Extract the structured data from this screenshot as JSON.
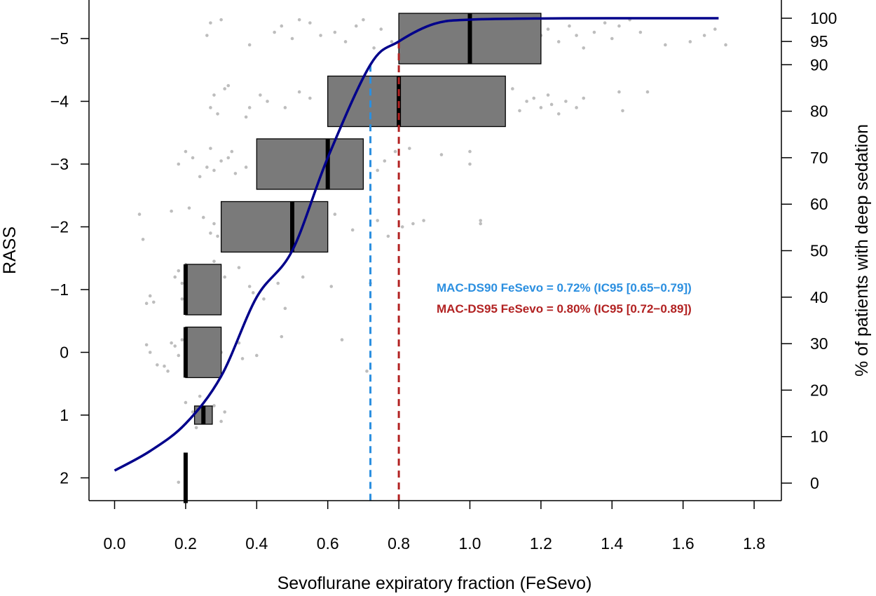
{
  "chart_data": {
    "type": "boxplot",
    "xlabel": "Sevoflurane expiratory fraction (FeSevo)",
    "ylabel": "RASS",
    "y2label": "% of patients with deep sedation",
    "xlim": [
      0,
      1.8
    ],
    "ylim_rass": [
      2,
      -5
    ],
    "ylim_percent": [
      0,
      100
    ],
    "x_ticks": [
      "0.0",
      "0.2",
      "0.4",
      "0.6",
      "0.8",
      "1.0",
      "1.2",
      "1.4",
      "1.6",
      "1.8"
    ],
    "x_tick_values": [
      0.0,
      0.2,
      0.4,
      0.6,
      0.8,
      1.0,
      1.2,
      1.4,
      1.6,
      1.8
    ],
    "y_ticks": [
      "−5",
      "−4",
      "−3",
      "−2",
      "−1",
      "0",
      "1",
      "2"
    ],
    "y_tick_values": [
      -5,
      -4,
      -3,
      -2,
      -1,
      0,
      1,
      2
    ],
    "y2_ticks": [
      "100",
      "95",
      "90",
      "80",
      "70",
      "60",
      "50",
      "40",
      "30",
      "20",
      "10",
      "0"
    ],
    "y2_tick_values": [
      100,
      95,
      90,
      80,
      70,
      60,
      50,
      40,
      30,
      20,
      10,
      0
    ],
    "boxes": [
      {
        "rass": -5,
        "q1": 0.8,
        "median": 1.0,
        "q3": 1.2
      },
      {
        "rass": -4,
        "q1": 0.6,
        "median": 0.8,
        "q3": 1.1
      },
      {
        "rass": -3,
        "q1": 0.4,
        "median": 0.6,
        "q3": 0.7
      },
      {
        "rass": -2,
        "q1": 0.3,
        "median": 0.5,
        "q3": 0.6
      },
      {
        "rass": -1,
        "q1": 0.2,
        "median": 0.2,
        "q3": 0.3
      },
      {
        "rass": 0,
        "q1": 0.2,
        "median": 0.2,
        "q3": 0.3
      },
      {
        "rass": 1,
        "q1": 0.225,
        "median": 0.25,
        "q3": 0.275
      },
      {
        "rass": 2,
        "q1": 0.2,
        "median": 0.2,
        "q3": 0.2
      }
    ],
    "curve": {
      "name": "% of patients with deep sedation",
      "x": [
        0.0,
        0.1,
        0.2,
        0.3,
        0.4,
        0.5,
        0.6,
        0.72,
        0.8,
        0.9,
        1.0,
        1.2,
        1.4,
        1.7
      ],
      "y": [
        2.7,
        6.9,
        12.8,
        23.0,
        40.0,
        50.0,
        70.0,
        90.0,
        95.0,
        98.8,
        99.7,
        99.95,
        100.0,
        100.0
      ]
    },
    "reference_lines": [
      {
        "label": "MAC-DS90",
        "x": 0.72,
        "color": "#2b8fe0"
      },
      {
        "label": "MAC-DS95",
        "x": 0.8,
        "color": "#b22222"
      }
    ],
    "annotations": [
      {
        "text": "MAC-DS90  FeSevo = 0.72% (IC95 [0.65−0.79])",
        "color": "#2b8fe0"
      },
      {
        "text": "MAC-DS95  FeSevo = 0.80% (IC95 [0.72−0.89])",
        "color": "#b22222"
      }
    ],
    "colors": {
      "box_fill": "#7a7a7a",
      "median": "#000000",
      "points": "#bdbdbd",
      "curve": "#00008b"
    },
    "points": [
      [
        0.17,
        -1.2
      ],
      [
        0.18,
        -1.3
      ],
      [
        0.19,
        -1.1
      ],
      [
        0.2,
        -1.4
      ],
      [
        0.21,
        -1.25
      ],
      [
        0.22,
        -1.05
      ],
      [
        0.23,
        -1.35
      ],
      [
        0.24,
        -0.95
      ],
      [
        0.1,
        -0.9
      ],
      [
        0.11,
        -0.8
      ],
      [
        0.09,
        -0.78
      ],
      [
        0.25,
        -1.15
      ],
      [
        0.27,
        -1.3
      ],
      [
        0.19,
        -0.85
      ],
      [
        0.28,
        -1.45
      ],
      [
        0.31,
        -1.2
      ],
      [
        0.35,
        -1.35
      ],
      [
        0.38,
        -1.05
      ],
      [
        0.39,
        -0.95
      ],
      [
        0.42,
        -0.85
      ],
      [
        0.46,
        -1.1
      ],
      [
        0.53,
        -1.2
      ],
      [
        0.61,
        -1.05
      ],
      [
        0.72,
        -1.1
      ],
      [
        0.48,
        -0.7
      ],
      [
        0.16,
        -0.15
      ],
      [
        0.17,
        -0.1
      ],
      [
        0.18,
        0.05
      ],
      [
        0.19,
        -0.2
      ],
      [
        0.2,
        0.1
      ],
      [
        0.21,
        -0.05
      ],
      [
        0.22,
        0.15
      ],
      [
        0.23,
        -0.25
      ],
      [
        0.24,
        0.25
      ],
      [
        0.25,
        0.05
      ],
      [
        0.1,
        0.0
      ],
      [
        0.12,
        0.2
      ],
      [
        0.14,
        0.22
      ],
      [
        0.15,
        0.3
      ],
      [
        0.09,
        -0.12
      ],
      [
        0.28,
        -0.2
      ],
      [
        0.3,
        0.0
      ],
      [
        0.35,
        -0.15
      ],
      [
        0.36,
        0.1
      ],
      [
        0.4,
        0.05
      ],
      [
        0.47,
        -0.25
      ],
      [
        0.64,
        -0.2
      ],
      [
        0.71,
        0.3
      ],
      [
        0.2,
        0.8
      ],
      [
        0.22,
        0.95
      ],
      [
        0.24,
        0.7
      ],
      [
        0.26,
        1.05
      ],
      [
        0.28,
        0.85
      ],
      [
        0.3,
        1.1
      ],
      [
        0.23,
        1.2
      ],
      [
        0.31,
        0.95
      ],
      [
        0.18,
        2.07
      ],
      [
        0.18,
        -3.0
      ],
      [
        0.2,
        -3.2
      ],
      [
        0.22,
        -3.1
      ],
      [
        0.24,
        -2.8
      ],
      [
        0.26,
        -2.95
      ],
      [
        0.27,
        -3.25
      ],
      [
        0.28,
        -2.9
      ],
      [
        0.3,
        -3.05
      ],
      [
        0.32,
        -3.1
      ],
      [
        0.33,
        -3.2
      ],
      [
        0.34,
        -2.85
      ],
      [
        0.37,
        -2.95
      ],
      [
        0.66,
        -2.7
      ],
      [
        0.74,
        -2.9
      ],
      [
        0.76,
        -3.05
      ],
      [
        0.79,
        -3.2
      ],
      [
        0.83,
        -3.25
      ],
      [
        0.92,
        -3.15
      ],
      [
        1.0,
        -3.2
      ],
      [
        1.0,
        -3.0
      ],
      [
        0.07,
        -2.2
      ],
      [
        0.08,
        -1.8
      ],
      [
        0.16,
        -2.25
      ],
      [
        0.21,
        -2.3
      ],
      [
        0.25,
        -2.15
      ],
      [
        0.27,
        -1.9
      ],
      [
        0.28,
        -2.05
      ],
      [
        0.29,
        -1.85
      ],
      [
        0.62,
        -2.2
      ],
      [
        0.67,
        -1.95
      ],
      [
        0.74,
        -2.1
      ],
      [
        0.77,
        -1.85
      ],
      [
        0.81,
        -2.0
      ],
      [
        0.84,
        -2.05
      ],
      [
        0.87,
        -2.1
      ],
      [
        1.03,
        -2.05
      ],
      [
        1.03,
        -2.1
      ],
      [
        0.27,
        -3.9
      ],
      [
        0.28,
        -4.1
      ],
      [
        0.29,
        -3.8
      ],
      [
        0.31,
        -4.2
      ],
      [
        0.32,
        -4.25
      ],
      [
        0.37,
        -3.75
      ],
      [
        0.38,
        -3.9
      ],
      [
        0.41,
        -4.1
      ],
      [
        0.43,
        -4.0
      ],
      [
        0.48,
        -3.9
      ],
      [
        0.52,
        -4.15
      ],
      [
        0.55,
        -4.05
      ],
      [
        1.12,
        -4.2
      ],
      [
        1.14,
        -3.85
      ],
      [
        1.16,
        -4.0
      ],
      [
        1.2,
        -3.9
      ],
      [
        1.22,
        -4.1
      ],
      [
        1.25,
        -3.8
      ],
      [
        1.27,
        -4.0
      ],
      [
        1.3,
        -3.9
      ],
      [
        1.32,
        -4.05
      ],
      [
        1.42,
        -4.15
      ],
      [
        1.43,
        -3.85
      ],
      [
        1.5,
        -4.15
      ],
      [
        1.18,
        -4.05
      ],
      [
        1.23,
        -3.95
      ],
      [
        0.26,
        -5.05
      ],
      [
        0.27,
        -5.25
      ],
      [
        0.3,
        -5.3
      ],
      [
        0.38,
        -4.9
      ],
      [
        0.45,
        -5.1
      ],
      [
        0.47,
        -5.2
      ],
      [
        0.5,
        -5.0
      ],
      [
        0.52,
        -5.3
      ],
      [
        0.55,
        -5.25
      ],
      [
        0.58,
        -5.05
      ],
      [
        0.62,
        -5.1
      ],
      [
        0.65,
        -4.95
      ],
      [
        0.68,
        -5.2
      ],
      [
        0.7,
        -5.3
      ],
      [
        0.73,
        -4.85
      ],
      [
        0.75,
        -5.15
      ],
      [
        0.78,
        -4.95
      ],
      [
        1.2,
        -5.05
      ],
      [
        1.22,
        -5.15
      ],
      [
        1.25,
        -4.95
      ],
      [
        1.28,
        -5.2
      ],
      [
        1.3,
        -5.05
      ],
      [
        1.32,
        -4.85
      ],
      [
        1.35,
        -5.1
      ],
      [
        1.38,
        -5.25
      ],
      [
        1.4,
        -5.0
      ],
      [
        1.42,
        -5.2
      ],
      [
        1.45,
        -5.3
      ],
      [
        1.48,
        -5.1
      ],
      [
        1.55,
        -4.9
      ],
      [
        1.62,
        -4.95
      ],
      [
        1.66,
        -5.05
      ],
      [
        1.69,
        -5.15
      ],
      [
        1.72,
        -4.9
      ]
    ]
  }
}
